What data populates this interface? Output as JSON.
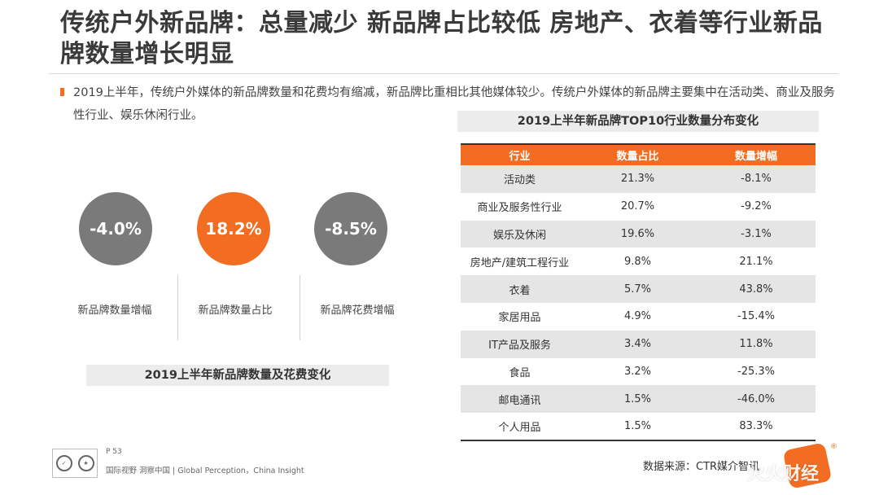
{
  "title": "传统户外新品牌：总量减少 新品牌占比较低 房地产、衣着等行业新品牌数量增长明显",
  "intro": "2019上半年，传统户外媒体的新品牌数量和花费均有缩减，新品牌比重相比其他媒体较少。传统户外媒体的新品牌主要集中在活动类、商业及服务性行业、娱乐休闲行业。",
  "metrics": [
    {
      "value": "-4.0%",
      "label": "新品牌数量增幅",
      "color": "#7a7a7a"
    },
    {
      "value": "18.2%",
      "label": "新品牌数量占比",
      "color": "#f26d21"
    },
    {
      "value": "-8.5%",
      "label": "新品牌花费增幅",
      "color": "#7a7a7a"
    }
  ],
  "left_caption": "2019上半年新品牌数量及花费变化",
  "table": {
    "caption": "2019上半年新品牌TOP10行业数量分布变化",
    "headers": [
      "行业",
      "数量占比",
      "数量增幅"
    ],
    "rows": [
      [
        "活动类",
        "21.3%",
        "-8.1%"
      ],
      [
        "商业及服务性行业",
        "20.7%",
        "-9.2%"
      ],
      [
        "娱乐及休闲",
        "19.6%",
        "-3.1%"
      ],
      [
        "房地产/建筑工程行业",
        "9.8%",
        "21.1%"
      ],
      [
        "衣着",
        "5.7%",
        "43.8%"
      ],
      [
        "家居用品",
        "4.9%",
        "-15.4%"
      ],
      [
        "IT产品及服务",
        "3.4%",
        "11.8%"
      ],
      [
        "食品",
        "3.2%",
        "-25.3%"
      ],
      [
        "邮电通讯",
        "1.5%",
        "-46.0%"
      ],
      [
        "个人用品",
        "1.5%",
        "83.3%"
      ]
    ]
  },
  "footer": {
    "page": "P 53",
    "tagline": "国际视野 洞察中国 | Global Perception，China Insight",
    "source": "数据来源：CTR媒介智讯",
    "logo_badge": "®",
    "watermark_corner": "火火财经"
  },
  "colors": {
    "accent": "#f26d21",
    "grey": "#7a7a7a"
  }
}
